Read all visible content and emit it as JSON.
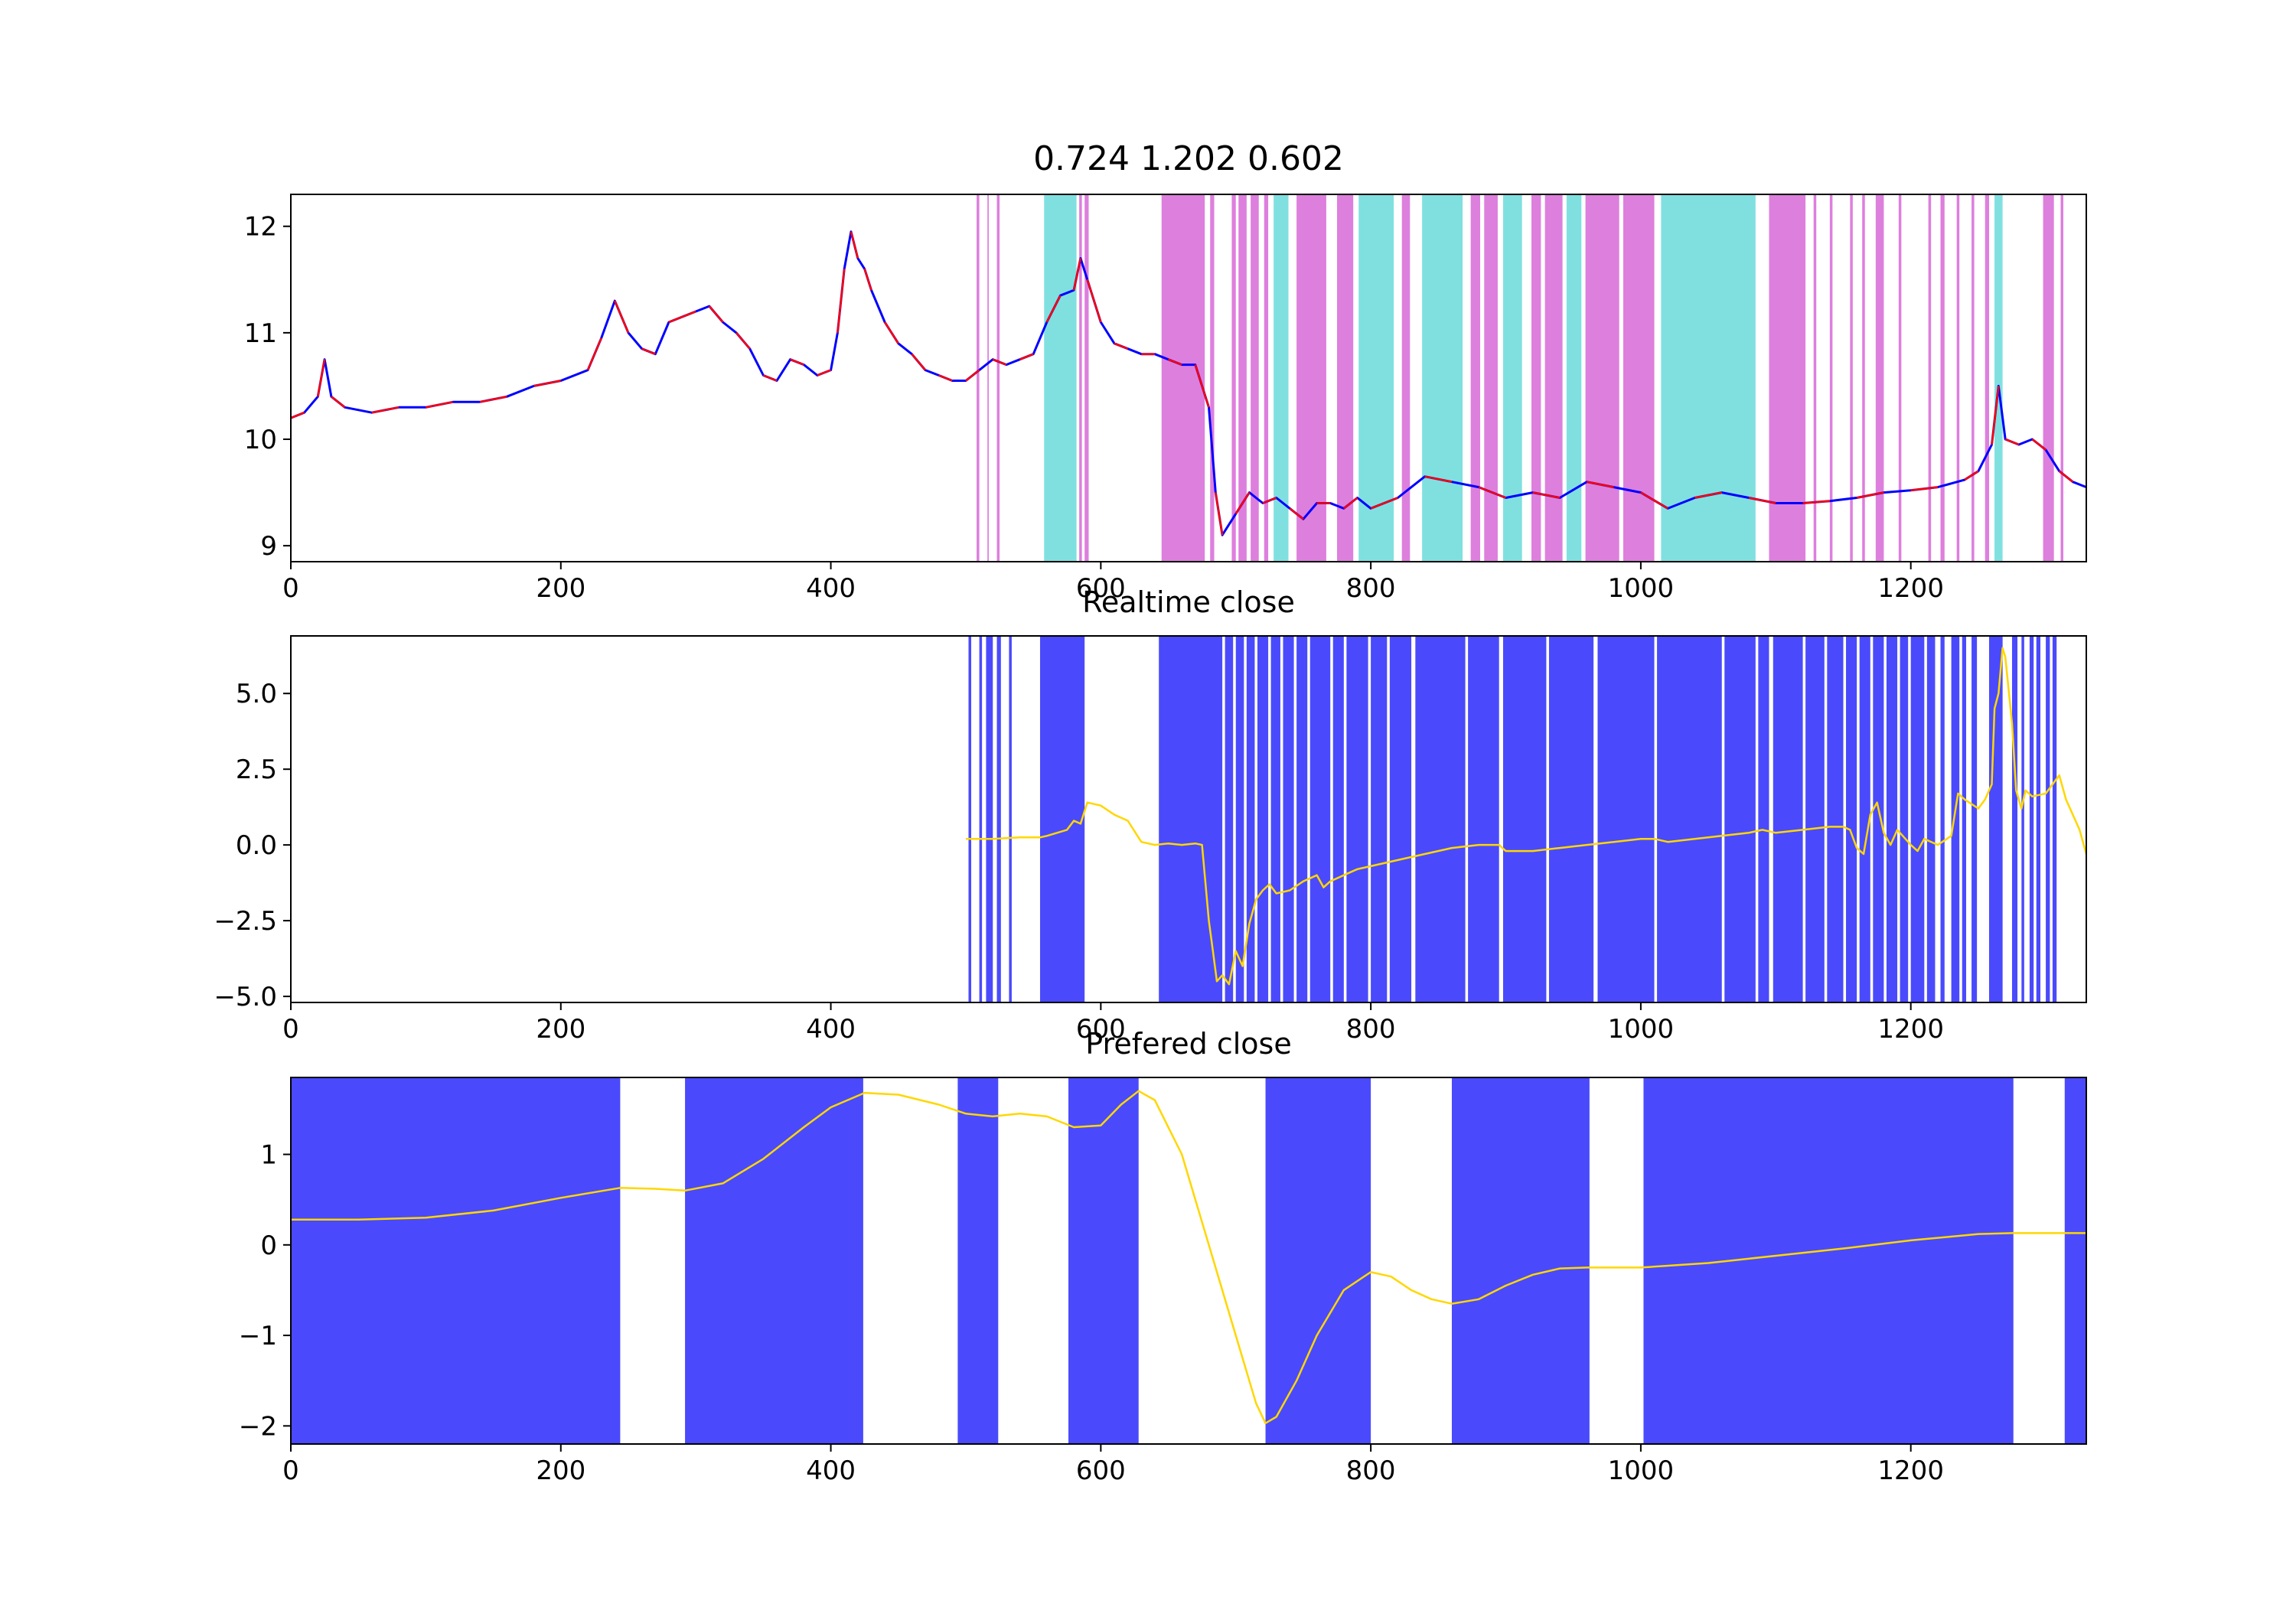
{
  "chart_data": [
    {
      "type": "line",
      "title": "0.724 1.202 0.602",
      "xlim": [
        0,
        1330
      ],
      "ylim": [
        8.85,
        12.3
      ],
      "xticks": [
        "0",
        "200",
        "400",
        "600",
        "800",
        "1000",
        "1200"
      ],
      "yticks": [
        "9",
        "10",
        "11",
        "12"
      ],
      "series": [
        {
          "color": "#0000ff",
          "x": [
            0,
            10,
            20,
            25,
            30,
            40,
            60,
            80,
            100,
            120,
            140,
            160,
            180,
            200,
            220,
            230,
            240,
            250,
            260,
            270,
            280,
            300,
            310,
            320,
            330,
            340,
            350,
            360,
            370,
            380,
            390,
            400,
            405,
            410,
            415,
            420,
            425,
            430,
            440,
            450,
            460,
            470,
            480,
            490,
            500,
            510,
            520,
            530,
            540,
            550,
            560,
            570,
            580,
            585,
            590,
            600,
            610,
            620,
            630,
            640,
            650,
            660,
            670,
            680,
            685,
            690,
            700,
            710,
            720,
            730,
            740,
            750,
            760,
            770,
            780,
            790,
            800,
            820,
            840,
            860,
            880,
            900,
            920,
            940,
            960,
            980,
            1000,
            1020,
            1040,
            1060,
            1080,
            1100,
            1120,
            1140,
            1160,
            1180,
            1200,
            1220,
            1240,
            1250,
            1260,
            1265,
            1270,
            1280,
            1290,
            1300,
            1310,
            1320,
            1330
          ],
          "y": [
            10.2,
            10.25,
            10.4,
            10.75,
            10.4,
            10.3,
            10.25,
            10.3,
            10.3,
            10.35,
            10.35,
            10.4,
            10.5,
            10.55,
            10.65,
            10.95,
            11.3,
            11.0,
            10.85,
            10.8,
            11.1,
            11.2,
            11.25,
            11.1,
            11.0,
            10.85,
            10.6,
            10.55,
            10.75,
            10.7,
            10.6,
            10.65,
            11.0,
            11.6,
            11.95,
            11.7,
            11.6,
            11.4,
            11.1,
            10.9,
            10.8,
            10.65,
            10.6,
            10.55,
            10.55,
            10.65,
            10.75,
            10.7,
            10.75,
            10.8,
            11.1,
            11.35,
            11.4,
            11.7,
            11.5,
            11.1,
            10.9,
            10.85,
            10.8,
            10.8,
            10.75,
            10.7,
            10.7,
            10.3,
            9.5,
            9.1,
            9.3,
            9.5,
            9.4,
            9.45,
            9.35,
            9.25,
            9.4,
            9.4,
            9.35,
            9.45,
            9.35,
            9.45,
            9.65,
            9.6,
            9.55,
            9.45,
            9.5,
            9.45,
            9.6,
            9.55,
            9.5,
            9.35,
            9.45,
            9.5,
            9.45,
            9.4,
            9.4,
            9.42,
            9.45,
            9.5,
            9.52,
            9.55,
            9.62,
            9.7,
            9.95,
            10.5,
            10.0,
            9.95,
            10.0,
            9.9,
            9.7,
            9.6,
            9.55
          ]
        }
      ],
      "bands": [
        {
          "x0": 508,
          "x1": 510,
          "color": "#dd7fdd"
        },
        {
          "x0": 516,
          "x1": 517,
          "color": "#dd7fdd"
        },
        {
          "x0": 523,
          "x1": 525,
          "color": "#dd7fdd"
        },
        {
          "x0": 558,
          "x1": 582,
          "color": "#80e0e0"
        },
        {
          "x0": 584,
          "x1": 586,
          "color": "#dd7fdd"
        },
        {
          "x0": 588,
          "x1": 591,
          "color": "#dd7fdd"
        },
        {
          "x0": 645,
          "x1": 677,
          "color": "#dd7fdd"
        },
        {
          "x0": 681,
          "x1": 684,
          "color": "#dd7fdd"
        },
        {
          "x0": 697,
          "x1": 700,
          "color": "#dd7fdd"
        },
        {
          "x0": 702,
          "x1": 708,
          "color": "#dd7fdd"
        },
        {
          "x0": 711,
          "x1": 717,
          "color": "#dd7fdd"
        },
        {
          "x0": 721,
          "x1": 724,
          "color": "#dd7fdd"
        },
        {
          "x0": 728,
          "x1": 739,
          "color": "#80e0e0"
        },
        {
          "x0": 745,
          "x1": 767,
          "color": "#dd7fdd"
        },
        {
          "x0": 775,
          "x1": 787,
          "color": "#dd7fdd"
        },
        {
          "x0": 791,
          "x1": 817,
          "color": "#80e0e0"
        },
        {
          "x0": 823,
          "x1": 829,
          "color": "#dd7fdd"
        },
        {
          "x0": 838,
          "x1": 868,
          "color": "#80e0e0"
        },
        {
          "x0": 874,
          "x1": 881,
          "color": "#dd7fdd"
        },
        {
          "x0": 884,
          "x1": 894,
          "color": "#dd7fdd"
        },
        {
          "x0": 898,
          "x1": 912,
          "color": "#80e0e0"
        },
        {
          "x0": 919,
          "x1": 926,
          "color": "#dd7fdd"
        },
        {
          "x0": 929,
          "x1": 942,
          "color": "#dd7fdd"
        },
        {
          "x0": 945,
          "x1": 956,
          "color": "#80e0e0"
        },
        {
          "x0": 959,
          "x1": 984,
          "color": "#dd7fdd"
        },
        {
          "x0": 987,
          "x1": 1010,
          "color": "#dd7fdd"
        },
        {
          "x0": 1015,
          "x1": 1085,
          "color": "#80e0e0"
        },
        {
          "x0": 1095,
          "x1": 1122,
          "color": "#dd7fdd"
        },
        {
          "x0": 1128,
          "x1": 1130,
          "color": "#dd7fdd"
        },
        {
          "x0": 1140,
          "x1": 1142,
          "color": "#dd7fdd"
        },
        {
          "x0": 1155,
          "x1": 1157,
          "color": "#dd7fdd"
        },
        {
          "x0": 1164,
          "x1": 1166,
          "color": "#dd7fdd"
        },
        {
          "x0": 1174,
          "x1": 1180,
          "color": "#dd7fdd"
        },
        {
          "x0": 1191,
          "x1": 1193,
          "color": "#dd7fdd"
        },
        {
          "x0": 1213,
          "x1": 1215,
          "color": "#dd7fdd"
        },
        {
          "x0": 1222,
          "x1": 1225,
          "color": "#dd7fdd"
        },
        {
          "x0": 1234,
          "x1": 1236,
          "color": "#dd7fdd"
        },
        {
          "x0": 1245,
          "x1": 1247,
          "color": "#dd7fdd"
        },
        {
          "x0": 1255,
          "x1": 1258,
          "color": "#dd7fdd"
        },
        {
          "x0": 1262,
          "x1": 1268,
          "color": "#80e0e0"
        },
        {
          "x0": 1298,
          "x1": 1306,
          "color": "#dd7fdd"
        },
        {
          "x0": 1311,
          "x1": 1313,
          "color": "#dd7fdd"
        }
      ]
    },
    {
      "type": "line",
      "title": "Realtime close",
      "xlim": [
        0,
        1330
      ],
      "ylim": [
        -5.2,
        6.9
      ],
      "xticks": [
        "0",
        "200",
        "400",
        "600",
        "800",
        "1000",
        "1200"
      ],
      "yticks": [
        "5.0",
        "2.5",
        "0.0",
        "−2.5",
        "−5.0"
      ],
      "series": [
        {
          "color": "#ffd700",
          "x": [
            500,
            520,
            540,
            555,
            560,
            575,
            580,
            585,
            590,
            600,
            610,
            620,
            630,
            640,
            650,
            660,
            670,
            675,
            680,
            683,
            686,
            690,
            695,
            700,
            705,
            710,
            715,
            720,
            725,
            730,
            740,
            750,
            760,
            765,
            770,
            780,
            790,
            800,
            820,
            840,
            860,
            880,
            895,
            900,
            920,
            940,
            960,
            980,
            1000,
            1010,
            1020,
            1040,
            1060,
            1080,
            1090,
            1100,
            1120,
            1140,
            1150,
            1155,
            1160,
            1165,
            1170,
            1175,
            1180,
            1185,
            1190,
            1200,
            1205,
            1210,
            1220,
            1230,
            1235,
            1240,
            1250,
            1255,
            1260,
            1262,
            1265,
            1268,
            1270,
            1275,
            1278,
            1282,
            1285,
            1290,
            1300,
            1305,
            1310,
            1315,
            1320,
            1325,
            1330
          ],
          "y": [
            0.2,
            0.2,
            0.25,
            0.25,
            0.3,
            0.5,
            0.8,
            0.7,
            1.4,
            1.3,
            1.0,
            0.8,
            0.1,
            0.0,
            0.05,
            0.0,
            0.05,
            0.0,
            -2.5,
            -3.5,
            -4.5,
            -4.3,
            -4.6,
            -3.5,
            -4.0,
            -2.6,
            -1.8,
            -1.5,
            -1.3,
            -1.6,
            -1.5,
            -1.2,
            -1.0,
            -1.4,
            -1.2,
            -1.0,
            -0.8,
            -0.7,
            -0.5,
            -0.3,
            -0.1,
            0.0,
            0.0,
            -0.2,
            -0.2,
            -0.1,
            0.0,
            0.1,
            0.2,
            0.2,
            0.1,
            0.2,
            0.3,
            0.4,
            0.5,
            0.4,
            0.5,
            0.6,
            0.6,
            0.5,
            -0.1,
            -0.3,
            1.0,
            1.4,
            0.4,
            0.0,
            0.5,
            0.0,
            -0.2,
            0.2,
            0.0,
            0.3,
            1.7,
            1.5,
            1.2,
            1.5,
            2.0,
            4.5,
            5.0,
            6.5,
            6.2,
            4.0,
            1.8,
            1.2,
            1.8,
            1.6,
            1.7,
            2.0,
            2.3,
            1.5,
            1.0,
            0.5,
            -0.3
          ]
        }
      ],
      "bands_color": "#4a4afc",
      "bands": [
        {
          "x0": 502,
          "x1": 504
        },
        {
          "x0": 510,
          "x1": 512
        },
        {
          "x0": 515,
          "x1": 520
        },
        {
          "x0": 523,
          "x1": 526
        },
        {
          "x0": 532,
          "x1": 534
        },
        {
          "x0": 555,
          "x1": 588
        },
        {
          "x0": 643,
          "x1": 690
        },
        {
          "x0": 692,
          "x1": 698
        },
        {
          "x0": 700,
          "x1": 706
        },
        {
          "x0": 708,
          "x1": 714
        },
        {
          "x0": 716,
          "x1": 724
        },
        {
          "x0": 726,
          "x1": 733
        },
        {
          "x0": 735,
          "x1": 743
        },
        {
          "x0": 745,
          "x1": 753
        },
        {
          "x0": 755,
          "x1": 770
        },
        {
          "x0": 772,
          "x1": 780
        },
        {
          "x0": 782,
          "x1": 798
        },
        {
          "x0": 800,
          "x1": 812
        },
        {
          "x0": 814,
          "x1": 830
        },
        {
          "x0": 833,
          "x1": 870
        },
        {
          "x0": 872,
          "x1": 895
        },
        {
          "x0": 898,
          "x1": 930
        },
        {
          "x0": 932,
          "x1": 965
        },
        {
          "x0": 968,
          "x1": 1010
        },
        {
          "x0": 1012,
          "x1": 1060
        },
        {
          "x0": 1062,
          "x1": 1085
        },
        {
          "x0": 1087,
          "x1": 1095
        },
        {
          "x0": 1098,
          "x1": 1120
        },
        {
          "x0": 1122,
          "x1": 1136
        },
        {
          "x0": 1138,
          "x1": 1150
        },
        {
          "x0": 1152,
          "x1": 1160
        },
        {
          "x0": 1162,
          "x1": 1170
        },
        {
          "x0": 1172,
          "x1": 1180
        },
        {
          "x0": 1182,
          "x1": 1190
        },
        {
          "x0": 1192,
          "x1": 1198
        },
        {
          "x0": 1200,
          "x1": 1210
        },
        {
          "x0": 1212,
          "x1": 1218
        },
        {
          "x0": 1222,
          "x1": 1225
        },
        {
          "x0": 1230,
          "x1": 1236
        },
        {
          "x0": 1238,
          "x1": 1241
        },
        {
          "x0": 1245,
          "x1": 1249
        },
        {
          "x0": 1258,
          "x1": 1268
        },
        {
          "x0": 1275,
          "x1": 1279
        },
        {
          "x0": 1282,
          "x1": 1284
        },
        {
          "x0": 1288,
          "x1": 1291
        },
        {
          "x0": 1293,
          "x1": 1296
        },
        {
          "x0": 1300,
          "x1": 1303
        },
        {
          "x0": 1305,
          "x1": 1308
        }
      ]
    },
    {
      "type": "line",
      "title": "Prefered close",
      "xlim": [
        0,
        1330
      ],
      "ylim": [
        -2.2,
        1.85
      ],
      "xticks": [
        "0",
        "200",
        "400",
        "600",
        "800",
        "1000",
        "1200"
      ],
      "yticks": [
        "1",
        "0",
        "−1",
        "−2"
      ],
      "series": [
        {
          "color": "#ffd700",
          "x": [
            0,
            50,
            100,
            150,
            200,
            244,
            270,
            292,
            320,
            350,
            380,
            400,
            425,
            450,
            480,
            500,
            520,
            540,
            560,
            580,
            600,
            615,
            628,
            640,
            660,
            680,
            700,
            715,
            722,
            730,
            745,
            760,
            780,
            800,
            815,
            830,
            845,
            860,
            880,
            900,
            920,
            940,
            960,
            1000,
            1050,
            1100,
            1150,
            1200,
            1250,
            1275,
            1300,
            1330
          ],
          "y": [
            0.28,
            0.28,
            0.3,
            0.38,
            0.52,
            0.63,
            0.62,
            0.6,
            0.68,
            0.95,
            1.3,
            1.52,
            1.68,
            1.66,
            1.55,
            1.45,
            1.42,
            1.45,
            1.42,
            1.3,
            1.32,
            1.55,
            1.7,
            1.6,
            1.0,
            0.0,
            -1.0,
            -1.75,
            -1.97,
            -1.9,
            -1.5,
            -1.0,
            -0.5,
            -0.3,
            -0.35,
            -0.5,
            -0.6,
            -0.65,
            -0.6,
            -0.45,
            -0.33,
            -0.26,
            -0.25,
            -0.25,
            -0.2,
            -0.12,
            -0.04,
            0.05,
            0.12,
            0.13,
            0.13,
            0.13
          ]
        }
      ],
      "bands_color": "#4a4afc",
      "bands": [
        {
          "x0": 0,
          "x1": 244
        },
        {
          "x0": 292,
          "x1": 424
        },
        {
          "x0": 494,
          "x1": 524
        },
        {
          "x0": 576,
          "x1": 628
        },
        {
          "x0": 722,
          "x1": 800
        },
        {
          "x0": 860,
          "x1": 962
        },
        {
          "x0": 1002,
          "x1": 1276
        },
        {
          "x0": 1314,
          "x1": 1330
        }
      ]
    }
  ]
}
